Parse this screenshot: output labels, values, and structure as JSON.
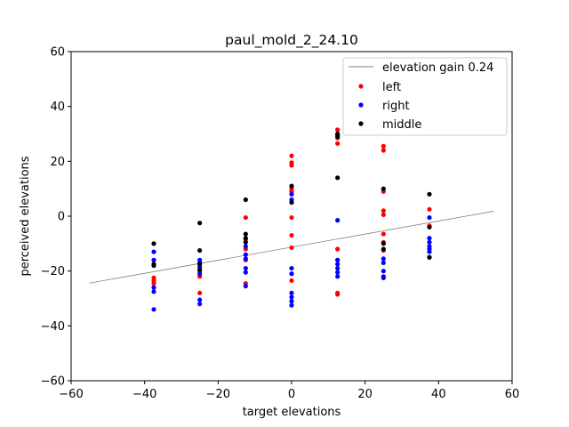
{
  "chart_data": {
    "type": "scatter",
    "title": "paul_mold_2_24.10",
    "xlabel": "target elevations",
    "ylabel": "perceived elevations",
    "xlim": [
      -60,
      60
    ],
    "ylim": [
      -60,
      60
    ],
    "xticks": [
      -60,
      -40,
      -20,
      0,
      20,
      40,
      60
    ],
    "yticks": [
      -60,
      -40,
      -20,
      0,
      20,
      40,
      60
    ],
    "xtick_labels": [
      "−60",
      "−40",
      "−20",
      "0",
      "20",
      "40",
      "60"
    ],
    "ytick_labels": [
      "−60",
      "−40",
      "−20",
      "0",
      "20",
      "40",
      "60"
    ],
    "grid": false,
    "legend_position": "top-right",
    "line": {
      "name": "elevation gain 0.24",
      "color": "#808080",
      "x": [
        -55,
        55
      ],
      "y": [
        -24.4,
        1.8
      ]
    },
    "series": [
      {
        "name": "left",
        "color": "#ff0000",
        "points": [
          [
            -37.5,
            -22.5
          ],
          [
            -37.5,
            -23.5
          ],
          [
            -37.5,
            -24.5
          ],
          [
            -25,
            -20
          ],
          [
            -25,
            -22
          ],
          [
            -25,
            -28
          ],
          [
            -12.5,
            -0.5
          ],
          [
            -12.5,
            -8.5
          ],
          [
            -12.5,
            -12
          ],
          [
            -12.5,
            -16
          ],
          [
            -12.5,
            -24.5
          ],
          [
            0,
            22
          ],
          [
            0,
            19.5
          ],
          [
            0,
            18.5
          ],
          [
            0,
            10
          ],
          [
            0,
            9
          ],
          [
            0,
            -0.5
          ],
          [
            0,
            -7
          ],
          [
            0,
            -11.5
          ],
          [
            0,
            -23.5
          ],
          [
            12.5,
            31.5
          ],
          [
            12.5,
            28.5
          ],
          [
            12.5,
            26.5
          ],
          [
            12.5,
            -12
          ],
          [
            12.5,
            -16
          ],
          [
            12.5,
            -28
          ],
          [
            12.5,
            -28.5
          ],
          [
            25,
            25.5
          ],
          [
            25,
            24
          ],
          [
            25,
            9
          ],
          [
            25,
            2
          ],
          [
            25,
            0.5
          ],
          [
            25,
            -6.5
          ],
          [
            25,
            -9.5
          ],
          [
            25,
            -12.5
          ],
          [
            37.5,
            2.5
          ],
          [
            37.5,
            -3.5
          ],
          [
            37.5,
            -15
          ]
        ]
      },
      {
        "name": "right",
        "color": "#0000ff",
        "points": [
          [
            -37.5,
            -13
          ],
          [
            -37.5,
            -16
          ],
          [
            -37.5,
            -26
          ],
          [
            -37.5,
            -27.5
          ],
          [
            -37.5,
            -34
          ],
          [
            -25,
            -16
          ],
          [
            -25,
            -17
          ],
          [
            -25,
            -18.5
          ],
          [
            -25,
            -21
          ],
          [
            -25,
            -30.5
          ],
          [
            -25,
            -32
          ],
          [
            -12.5,
            -11
          ],
          [
            -12.5,
            -14
          ],
          [
            -12.5,
            -15.5
          ],
          [
            -12.5,
            -19
          ],
          [
            -12.5,
            -20.5
          ],
          [
            -12.5,
            -25.5
          ],
          [
            0,
            8
          ],
          [
            0,
            6
          ],
          [
            0,
            -19
          ],
          [
            0,
            -21
          ],
          [
            0,
            -28
          ],
          [
            0,
            -29.5
          ],
          [
            0,
            -31
          ],
          [
            0,
            -32.5
          ],
          [
            12.5,
            -1.5
          ],
          [
            12.5,
            -16
          ],
          [
            12.5,
            -17.5
          ],
          [
            12.5,
            -19
          ],
          [
            12.5,
            -20.5
          ],
          [
            12.5,
            -22
          ],
          [
            25,
            -15.5
          ],
          [
            25,
            -17
          ],
          [
            25,
            -20
          ],
          [
            25,
            -22
          ],
          [
            25,
            -22.5
          ],
          [
            37.5,
            -0.5
          ],
          [
            37.5,
            -8
          ],
          [
            37.5,
            -9.5
          ],
          [
            37.5,
            -11
          ],
          [
            37.5,
            -12
          ],
          [
            37.5,
            -13
          ]
        ]
      },
      {
        "name": "middle",
        "color": "#000000",
        "points": [
          [
            -37.5,
            -10
          ],
          [
            -37.5,
            -17.5
          ],
          [
            -37.5,
            -18
          ],
          [
            -25,
            -2.5
          ],
          [
            -25,
            -12.5
          ],
          [
            -25,
            -17.5
          ],
          [
            -25,
            -19.5
          ],
          [
            -12.5,
            6
          ],
          [
            -12.5,
            -6.5
          ],
          [
            -12.5,
            -8
          ],
          [
            -12.5,
            -9.5
          ],
          [
            0,
            11
          ],
          [
            0,
            5
          ],
          [
            12.5,
            30
          ],
          [
            12.5,
            29.5
          ],
          [
            12.5,
            29
          ],
          [
            12.5,
            14
          ],
          [
            25,
            10
          ],
          [
            25,
            -10
          ],
          [
            25,
            -12
          ],
          [
            37.5,
            8
          ],
          [
            37.5,
            -4
          ],
          [
            37.5,
            -15
          ]
        ]
      }
    ]
  }
}
